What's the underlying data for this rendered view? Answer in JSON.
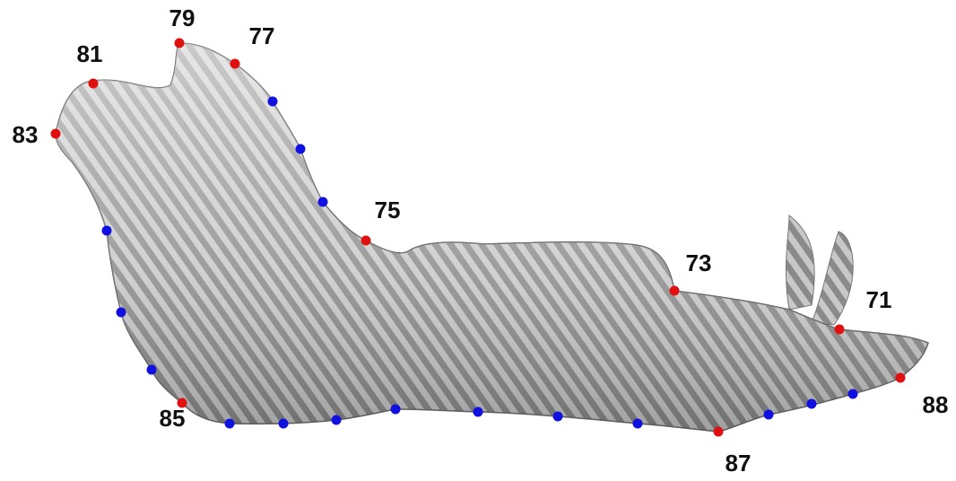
{
  "landmarks": [
    {
      "label": "79"
    },
    {
      "label": "77"
    },
    {
      "label": "81"
    },
    {
      "label": "83"
    },
    {
      "label": "75"
    },
    {
      "label": "73"
    },
    {
      "label": "71"
    },
    {
      "label": "88"
    },
    {
      "label": "87"
    },
    {
      "label": "85"
    }
  ]
}
